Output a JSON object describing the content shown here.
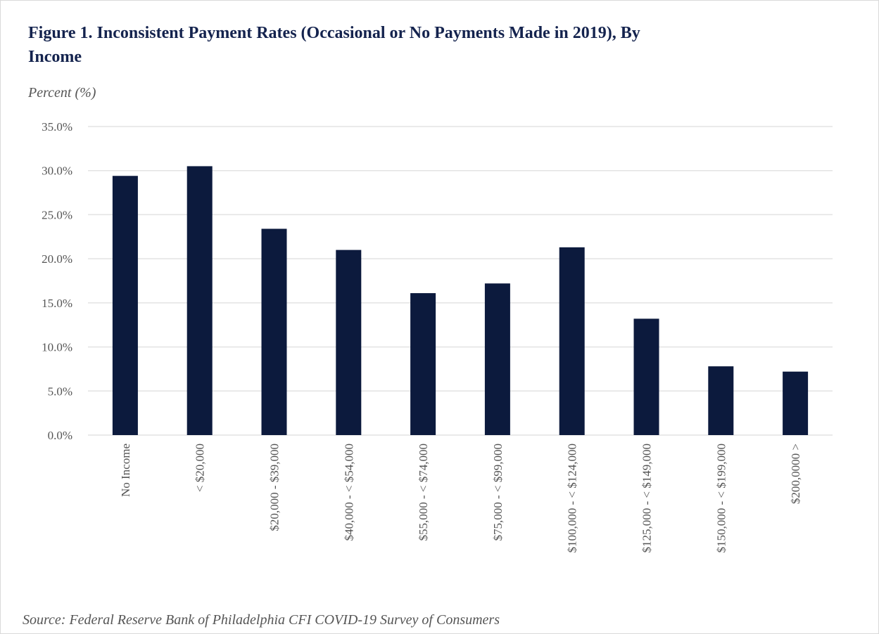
{
  "chart_data": {
    "type": "bar",
    "title": "Figure 1. Inconsistent Payment Rates (Occasional or No Payments Made in 2019), By Income",
    "y_axis_label": "Percent (%)",
    "source": "Source: Federal Reserve Bank of Philadelphia CFI COVID-19 Survey of Consumers",
    "categories": [
      "No Income",
      "< $20,000",
      "$20,000 - $39,000",
      "$40,000 - < $54,000",
      "$55,000 - < $74,000",
      "$75,000 - < $99,000",
      "$100,000 - < $124,000",
      "$125,000 - < $149,000",
      "$150,000 - < $199,000",
      "$200,0000 >"
    ],
    "values": [
      29.4,
      30.5,
      23.4,
      21.0,
      16.1,
      17.2,
      21.3,
      13.2,
      7.8,
      7.2
    ],
    "color": "#0c1a3d",
    "ylim": [
      0,
      35
    ],
    "yticks": [
      {
        "value": 0,
        "label": "0.0%"
      },
      {
        "value": 5,
        "label": "5.0%"
      },
      {
        "value": 10,
        "label": "10.0%"
      },
      {
        "value": 15,
        "label": "15.0%"
      },
      {
        "value": 20,
        "label": "20.0%"
      },
      {
        "value": 25,
        "label": "25.0%"
      },
      {
        "value": 30,
        "label": "30.0%"
      },
      {
        "value": 35,
        "label": "35.0%"
      }
    ],
    "grid": true
  }
}
